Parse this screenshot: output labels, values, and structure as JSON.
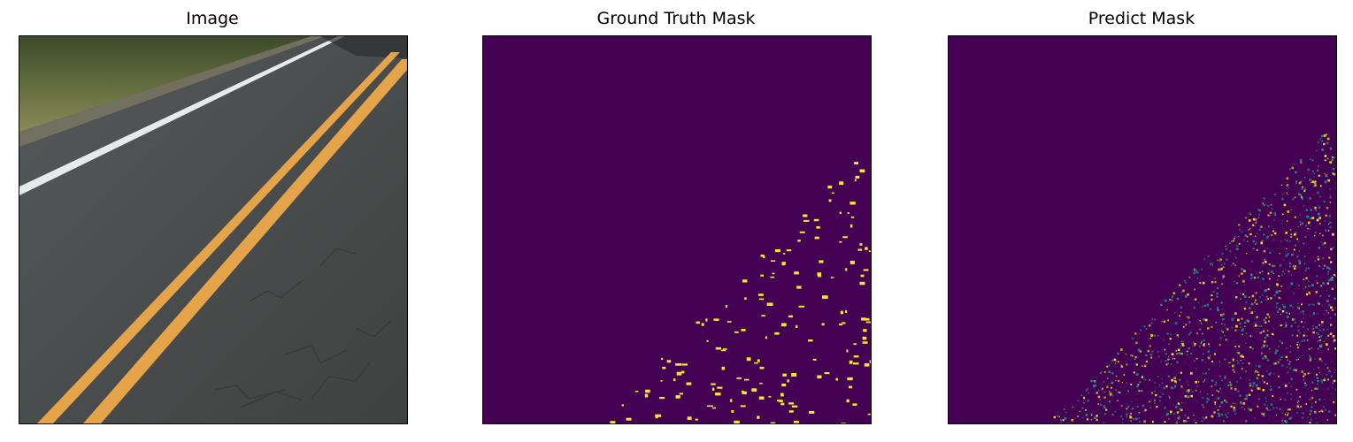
{
  "panels": [
    {
      "title": "Image"
    },
    {
      "title": "Ground Truth Mask"
    },
    {
      "title": "Predict Mask"
    }
  ],
  "colors": {
    "mask_background": "#440154",
    "mask_foreground": "#fde725",
    "mask_midtone": "#21918c",
    "asphalt": "#4a4d4c",
    "lane_yellow": "#e8a94a",
    "lane_white": "#e8ecec",
    "grass": "#5f6a3c"
  },
  "icons": [
    "road-photo",
    "crack-mask-ground-truth",
    "crack-mask-prediction"
  ]
}
